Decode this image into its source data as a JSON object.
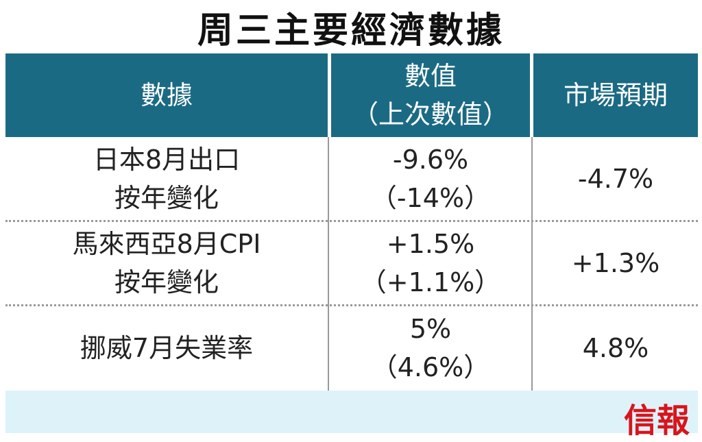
{
  "title": "周三主要經濟數據",
  "table": {
    "header": [
      [
        "數據"
      ],
      [
        "數值",
        "（上次數值）"
      ],
      [
        "市場預期"
      ]
    ],
    "rows": [
      [
        [
          "日本8月出口",
          "按年變化"
        ],
        [
          "-9.6%",
          "（-14%）"
        ],
        [
          "-4.7%"
        ]
      ],
      [
        [
          "馬來西亞8月CPI",
          "按年變化"
        ],
        [
          "+1.5%",
          "（+1.1%）"
        ],
        [
          "+1.3%"
        ]
      ],
      [
        [
          "挪威7月失業率"
        ],
        [
          "5%",
          "（4.6%）"
        ],
        [
          "4.8%"
        ]
      ]
    ]
  },
  "logo": "信報"
}
